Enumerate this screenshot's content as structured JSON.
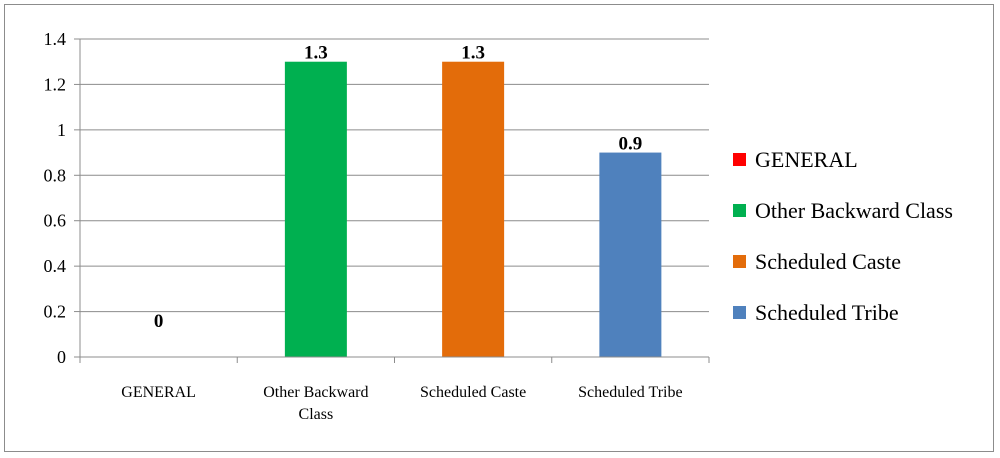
{
  "chart_data": {
    "type": "bar",
    "categories": [
      [
        "GENERAL"
      ],
      [
        "Other Backward",
        "Class"
      ],
      [
        "Scheduled Caste"
      ],
      [
        "Scheduled Tribe"
      ]
    ],
    "values": [
      0,
      1.3,
      1.3,
      0.9
    ],
    "data_labels": [
      "0",
      "1.3",
      "1.3",
      "0.9"
    ],
    "colors": [
      "#ff0000",
      "#00b050",
      "#e36c0a",
      "#4f81bd"
    ],
    "ylim": [
      0,
      1.4
    ],
    "y_ticks": [
      "0",
      "0.2",
      "0.4",
      "0.6",
      "0.8",
      "1",
      "1.2",
      "1.4"
    ],
    "grid": true,
    "legend_position": "right",
    "legend": [
      "GENERAL",
      "Other Backward Class",
      "Scheduled Caste",
      "Scheduled Tribe"
    ],
    "title": "",
    "xlabel": "",
    "ylabel": ""
  }
}
